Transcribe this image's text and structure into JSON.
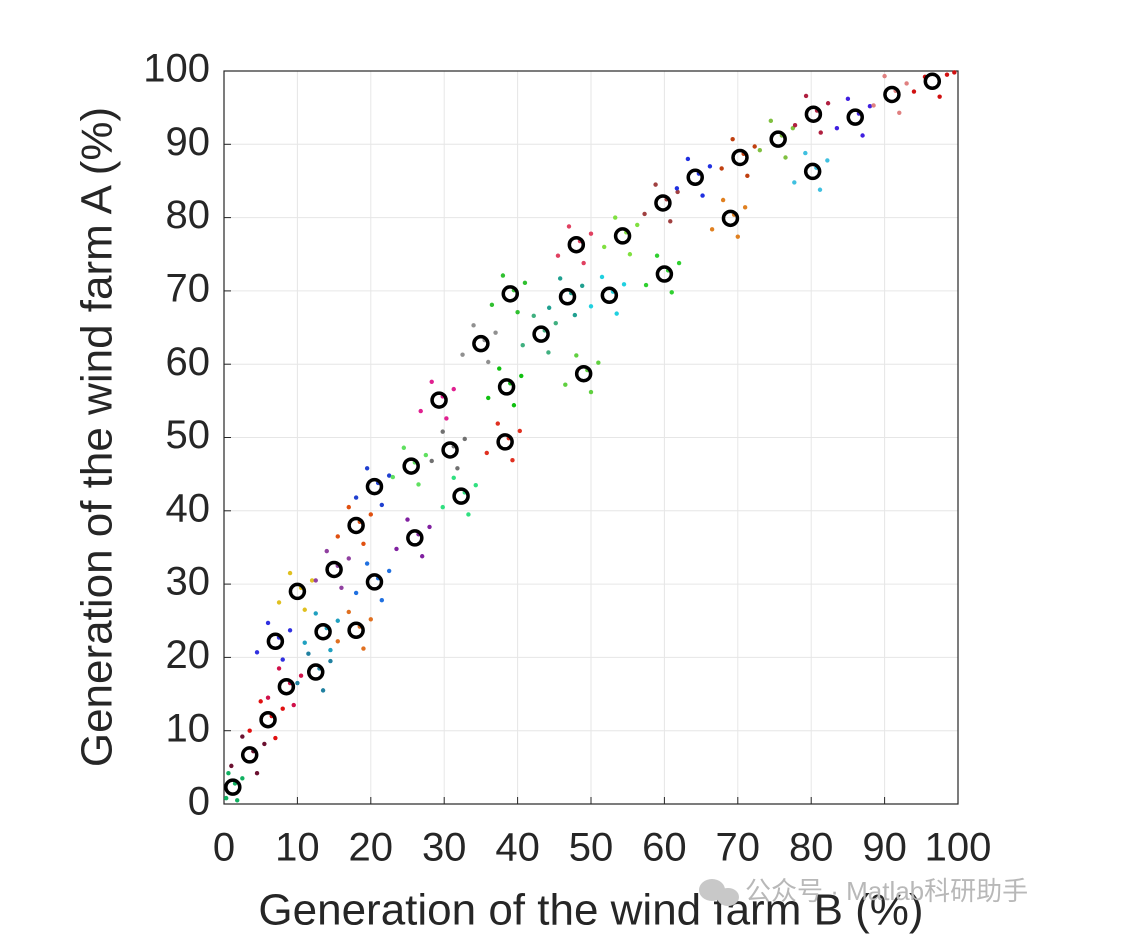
{
  "chart_data": {
    "type": "scatter",
    "xlabel": "Generation of the wind farm B (%)",
    "ylabel": "Generation of the wind farm A (%)",
    "watermark": "公众号 · Matlab科研助手",
    "xlim": [
      0,
      100
    ],
    "ylim": [
      0,
      100
    ],
    "xticks": [
      0,
      10,
      20,
      30,
      40,
      50,
      60,
      70,
      80,
      90,
      100
    ],
    "yticks": [
      0,
      10,
      20,
      30,
      40,
      50,
      60,
      70,
      80,
      90,
      100
    ],
    "grid": true,
    "series": [
      {
        "color": "#10b060",
        "marker": "dot",
        "x": [
          0.3,
          2.5,
          1.8,
          0.6,
          1.5
        ],
        "y": [
          0.8,
          3.5,
          0.5,
          4.2,
          2.8
        ]
      },
      {
        "color": "#6b1030",
        "marker": "dot",
        "x": [
          1,
          5.5,
          4.5,
          2.5,
          4
        ],
        "y": [
          5.2,
          8.2,
          4.2,
          9.2,
          7.2
        ]
      },
      {
        "color": "#e01010",
        "marker": "dot",
        "x": [
          3.5,
          8,
          7,
          5,
          6.5
        ],
        "y": [
          10,
          13,
          9,
          14,
          12
        ]
      },
      {
        "color": "#d0104a",
        "marker": "dot",
        "x": [
          6,
          10.5,
          9.5,
          7.5,
          9
        ],
        "y": [
          14.5,
          17.5,
          13.5,
          18.5,
          16.5
        ]
      },
      {
        "color": "#3030e0",
        "marker": "dot",
        "x": [
          4.5,
          9,
          8,
          6,
          7.5
        ],
        "y": [
          20.7,
          23.7,
          19.7,
          24.7,
          22.7
        ]
      },
      {
        "color": "#2080a0",
        "marker": "dot",
        "x": [
          10,
          14.5,
          13.5,
          11.5,
          13
        ],
        "y": [
          16.5,
          19.5,
          15.5,
          20.5,
          18.5
        ]
      },
      {
        "color": "#e0c020",
        "marker": "dot",
        "x": [
          7.5,
          12,
          11,
          9,
          10.5
        ],
        "y": [
          27.5,
          30.5,
          26.5,
          31.5,
          29.5
        ]
      },
      {
        "color": "#20a0c0",
        "marker": "dot",
        "x": [
          11,
          15.5,
          14.5,
          12.5,
          14
        ],
        "y": [
          22,
          25,
          21,
          26,
          24
        ]
      },
      {
        "color": "#e07020",
        "marker": "dot",
        "x": [
          15.5,
          20,
          19,
          17,
          18.5
        ],
        "y": [
          22.2,
          25.2,
          21.2,
          26.2,
          24.2
        ]
      },
      {
        "color": "#9040a0",
        "marker": "dot",
        "x": [
          12.5,
          17,
          16,
          14,
          15.5
        ],
        "y": [
          30.5,
          33.5,
          29.5,
          34.5,
          32.5
        ]
      },
      {
        "color": "#e05010",
        "marker": "dot",
        "x": [
          15.5,
          20,
          19,
          17,
          18.5
        ],
        "y": [
          36.5,
          39.5,
          35.5,
          40.5,
          38.5
        ]
      },
      {
        "color": "#2070e0",
        "marker": "dot",
        "x": [
          18,
          22.5,
          21.5,
          19.5,
          21
        ],
        "y": [
          28.8,
          31.8,
          27.8,
          32.8,
          30.8
        ]
      },
      {
        "color": "#2040d0",
        "marker": "dot",
        "x": [
          18,
          22.5,
          21.5,
          19.5,
          21
        ],
        "y": [
          41.8,
          44.8,
          40.8,
          45.8,
          43.8
        ]
      },
      {
        "color": "#60e060",
        "marker": "dot",
        "x": [
          23,
          27.5,
          26.5,
          24.5,
          26
        ],
        "y": [
          44.6,
          47.6,
          43.6,
          48.6,
          46.6
        ]
      },
      {
        "color": "#8020a0",
        "marker": "dot",
        "x": [
          23.5,
          28,
          27,
          25,
          26.5
        ],
        "y": [
          34.8,
          37.8,
          33.8,
          38.8,
          36.8
        ]
      },
      {
        "color": "#e02090",
        "marker": "dot",
        "x": [
          26.8,
          31.3,
          30.3,
          28.3,
          29.8
        ],
        "y": [
          53.6,
          56.6,
          52.6,
          57.6,
          55.6
        ]
      },
      {
        "color": "#707070",
        "marker": "dot",
        "x": [
          28.3,
          32.8,
          31.8,
          29.8,
          31.3
        ],
        "y": [
          46.8,
          49.8,
          45.8,
          50.8,
          48.8
        ]
      },
      {
        "color": "#30e080",
        "marker": "dot",
        "x": [
          29.8,
          34.3,
          33.3,
          31.3,
          32.8
        ],
        "y": [
          40.5,
          43.5,
          39.5,
          44.5,
          42.5
        ]
      },
      {
        "color": "#909090",
        "marker": "dot",
        "x": [
          32.5,
          37,
          36,
          34,
          35.5
        ],
        "y": [
          61.3,
          64.3,
          60.3,
          65.3,
          63.3
        ]
      },
      {
        "color": "#e03020",
        "marker": "dot",
        "x": [
          35.8,
          40.3,
          39.3,
          37.3,
          38.8
        ],
        "y": [
          47.9,
          50.9,
          46.9,
          51.9,
          49.9
        ]
      },
      {
        "color": "#10c010",
        "marker": "dot",
        "x": [
          36,
          40.5,
          39.5,
          37.5,
          39
        ],
        "y": [
          55.4,
          58.4,
          54.4,
          59.4,
          57.4
        ]
      },
      {
        "color": "#30c030",
        "marker": "dot",
        "x": [
          36.5,
          41,
          40,
          38,
          39.5
        ],
        "y": [
          68.1,
          71.1,
          67.1,
          72.1,
          70.1
        ]
      },
      {
        "color": "#40b080",
        "marker": "dot",
        "x": [
          40.7,
          45.2,
          44.2,
          42.2,
          43.7
        ],
        "y": [
          62.6,
          65.6,
          61.6,
          66.6,
          64.6
        ]
      },
      {
        "color": "#20a090",
        "marker": "dot",
        "x": [
          44.3,
          48.8,
          47.8,
          45.8,
          47.3
        ],
        "y": [
          67.7,
          70.7,
          66.7,
          71.7,
          69.7
        ]
      },
      {
        "color": "#e04060",
        "marker": "dot",
        "x": [
          45.5,
          50,
          49,
          47,
          48.5
        ],
        "y": [
          74.8,
          77.8,
          73.8,
          78.8,
          76.8
        ]
      },
      {
        "color": "#60d040",
        "marker": "dot",
        "x": [
          46.5,
          51,
          50,
          48,
          49.5
        ],
        "y": [
          57.2,
          60.2,
          56.2,
          61.2,
          59.2
        ]
      },
      {
        "color": "#20d0e0",
        "marker": "dot",
        "x": [
          50,
          54.5,
          53.5,
          51.5,
          53
        ],
        "y": [
          67.9,
          70.9,
          66.9,
          71.9,
          69.9
        ]
      },
      {
        "color": "#80e040",
        "marker": "dot",
        "x": [
          51.8,
          56.3,
          55.3,
          53.3,
          54.8
        ],
        "y": [
          76,
          79,
          75,
          80,
          78
        ]
      },
      {
        "color": "#a04040",
        "marker": "dot",
        "x": [
          57.3,
          61.8,
          60.8,
          58.8,
          60.3
        ],
        "y": [
          80.5,
          83.5,
          79.5,
          84.5,
          82.5
        ]
      },
      {
        "color": "#30d030",
        "marker": "dot",
        "x": [
          57.5,
          62,
          61,
          59,
          60.5
        ],
        "y": [
          70.8,
          73.8,
          69.8,
          74.8,
          72.8
        ]
      },
      {
        "color": "#2030e0",
        "marker": "dot",
        "x": [
          61.7,
          66.2,
          65.2,
          63.2,
          64.7
        ],
        "y": [
          84,
          87,
          83,
          88,
          86
        ]
      },
      {
        "color": "#e08020",
        "marker": "dot",
        "x": [
          66.5,
          71,
          70,
          68,
          69.5
        ],
        "y": [
          78.4,
          81.4,
          77.4,
          82.4,
          80.4
        ]
      },
      {
        "color": "#c04010",
        "marker": "dot",
        "x": [
          67.8,
          72.3,
          71.3,
          69.3,
          70.8
        ],
        "y": [
          86.7,
          89.7,
          85.7,
          90.7,
          88.7
        ]
      },
      {
        "color": "#80c040",
        "marker": "dot",
        "x": [
          73,
          77.5,
          76.5,
          74.5,
          76
        ],
        "y": [
          89.2,
          92.2,
          88.2,
          93.2,
          91.2
        ]
      },
      {
        "color": "#40c0e0",
        "marker": "dot",
        "x": [
          77.7,
          82.2,
          81.2,
          79.2,
          80.7
        ],
        "y": [
          84.8,
          87.8,
          83.8,
          88.8,
          86.8
        ]
      },
      {
        "color": "#b02040",
        "marker": "dot",
        "x": [
          77.8,
          82.3,
          81.3,
          79.3,
          80.8
        ],
        "y": [
          92.6,
          95.6,
          91.6,
          96.6,
          94.6
        ]
      },
      {
        "color": "#4020e0",
        "marker": "dot",
        "x": [
          83.5,
          88,
          87,
          85,
          86.5
        ],
        "y": [
          92.2,
          95.2,
          91.2,
          96.2,
          94.2
        ]
      },
      {
        "color": "#e08080",
        "marker": "dot",
        "x": [
          88.5,
          93,
          92,
          90,
          91.5
        ],
        "y": [
          95.3,
          98.3,
          94.3,
          99.3,
          97.3
        ]
      },
      {
        "color": "#d01010",
        "marker": "dot",
        "x": [
          94,
          98.5,
          97.5,
          95.5,
          99.5
        ],
        "y": [
          97.2,
          99.5,
          96.5,
          99.2,
          99.8
        ]
      },
      {
        "color": "#000000",
        "marker": "circle",
        "x": [
          1.2,
          3.5,
          6,
          8.5,
          7,
          12.5,
          10,
          13.5,
          18,
          15,
          18,
          20.5,
          20.5,
          25.5,
          26,
          29.3,
          30.8,
          32.3,
          35,
          38.3,
          38.5,
          39,
          43.2,
          46.8,
          48,
          49,
          52.5,
          54.3,
          59.8,
          60,
          64.2,
          69,
          70.3,
          75.5,
          80.2,
          80.3,
          86,
          91,
          96.5
        ],
        "y": [
          2.3,
          6.7,
          11.5,
          16,
          22.2,
          18,
          29,
          23.5,
          23.7,
          32,
          38,
          30.3,
          43.3,
          46.1,
          36.3,
          55.1,
          48.3,
          42,
          62.8,
          49.4,
          56.9,
          69.6,
          64.1,
          69.2,
          76.3,
          58.7,
          69.4,
          77.5,
          82,
          72.3,
          85.5,
          79.9,
          88.2,
          90.7,
          86.3,
          94.1,
          93.7,
          96.8,
          98.6
        ]
      }
    ]
  }
}
